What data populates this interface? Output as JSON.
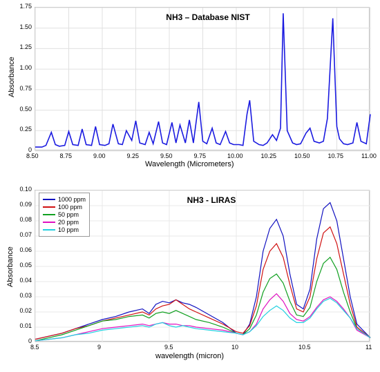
{
  "top_chart": {
    "type": "line",
    "title": "NH3 – Database NIST",
    "title_fontsize": 12,
    "xlabel": "Wavelength (Micrometers)",
    "ylabel": "Absorbance",
    "label_fontsize": 11,
    "tick_fontsize": 9,
    "xlim": [
      8.5,
      11.0
    ],
    "ylim": [
      0,
      1.75
    ],
    "xticks": [
      8.5,
      8.75,
      9.0,
      9.25,
      9.5,
      9.75,
      10.0,
      10.25,
      10.5,
      10.75,
      11.0
    ],
    "yticks": [
      0,
      0.25,
      0.5,
      0.75,
      1.0,
      1.25,
      1.5,
      1.75
    ],
    "line_color": "#1a1ae0",
    "line_width": 1.6,
    "background_color": "#ffffff",
    "grid_color": "#e0e0e0",
    "x": [
      8.5,
      8.55,
      8.58,
      8.62,
      8.65,
      8.68,
      8.72,
      8.75,
      8.78,
      8.82,
      8.85,
      8.88,
      8.92,
      8.95,
      8.98,
      9.02,
      9.05,
      9.08,
      9.12,
      9.15,
      9.18,
      9.22,
      9.25,
      9.28,
      9.32,
      9.35,
      9.38,
      9.42,
      9.45,
      9.48,
      9.52,
      9.55,
      9.58,
      9.62,
      9.65,
      9.68,
      9.72,
      9.75,
      9.78,
      9.82,
      9.85,
      9.88,
      9.92,
      9.95,
      9.98,
      10.02,
      10.05,
      10.08,
      10.1,
      10.13,
      10.17,
      10.2,
      10.23,
      10.27,
      10.3,
      10.33,
      10.35,
      10.38,
      10.42,
      10.45,
      10.48,
      10.52,
      10.55,
      10.58,
      10.62,
      10.65,
      10.68,
      10.72,
      10.73,
      10.75,
      10.77,
      10.8,
      10.83,
      10.87,
      10.9,
      10.93,
      10.97,
      11.0
    ],
    "y": [
      0.05,
      0.05,
      0.07,
      0.23,
      0.08,
      0.06,
      0.07,
      0.24,
      0.08,
      0.07,
      0.27,
      0.08,
      0.07,
      0.3,
      0.08,
      0.07,
      0.09,
      0.33,
      0.09,
      0.08,
      0.25,
      0.13,
      0.37,
      0.1,
      0.08,
      0.23,
      0.09,
      0.36,
      0.1,
      0.08,
      0.35,
      0.1,
      0.32,
      0.1,
      0.38,
      0.1,
      0.6,
      0.12,
      0.09,
      0.28,
      0.1,
      0.08,
      0.24,
      0.1,
      0.08,
      0.08,
      0.07,
      0.45,
      0.62,
      0.12,
      0.08,
      0.07,
      0.1,
      0.2,
      0.13,
      0.28,
      1.68,
      0.25,
      0.1,
      0.08,
      0.09,
      0.22,
      0.28,
      0.12,
      0.1,
      0.12,
      0.4,
      1.62,
      1.18,
      0.3,
      0.15,
      0.09,
      0.08,
      0.1,
      0.35,
      0.12,
      0.09,
      0.45
    ]
  },
  "bottom_chart": {
    "type": "line",
    "title": "NH3 - LIRAS",
    "title_fontsize": 12,
    "xlabel": "wavelength (micron)",
    "ylabel": "Absorbance",
    "label_fontsize": 11,
    "tick_fontsize": 9,
    "xlim": [
      8.5,
      11.0
    ],
    "ylim": [
      0,
      0.1
    ],
    "xticks": [
      8.5,
      9,
      9.5,
      10,
      10.5,
      11
    ],
    "yticks": [
      0,
      0.01,
      0.02,
      0.03,
      0.04,
      0.05,
      0.06,
      0.07,
      0.08,
      0.09,
      0.1
    ],
    "background_color": "#ffffff",
    "grid_color": "#e8e8e8",
    "line_width": 1.2,
    "legend_position": "top-left",
    "series": [
      {
        "label": "1000 ppm",
        "color": "#1010c0",
        "x": [
          8.5,
          8.6,
          8.7,
          8.8,
          8.9,
          9.0,
          9.1,
          9.2,
          9.3,
          9.35,
          9.4,
          9.45,
          9.5,
          9.55,
          9.6,
          9.65,
          9.7,
          9.8,
          9.9,
          10.0,
          10.05,
          10.1,
          10.15,
          10.2,
          10.25,
          10.3,
          10.35,
          10.4,
          10.45,
          10.5,
          10.55,
          10.6,
          10.65,
          10.7,
          10.75,
          10.8,
          10.85,
          10.9,
          11.0
        ],
        "y": [
          0.002,
          0.004,
          0.006,
          0.009,
          0.012,
          0.015,
          0.017,
          0.02,
          0.022,
          0.019,
          0.025,
          0.027,
          0.026,
          0.028,
          0.026,
          0.025,
          0.023,
          0.018,
          0.013,
          0.006,
          0.005,
          0.012,
          0.03,
          0.06,
          0.075,
          0.081,
          0.07,
          0.045,
          0.025,
          0.022,
          0.035,
          0.068,
          0.088,
          0.092,
          0.08,
          0.055,
          0.03,
          0.012,
          0.003
        ]
      },
      {
        "label": "100 ppm",
        "color": "#d01010",
        "x": [
          8.5,
          8.6,
          8.7,
          8.8,
          8.9,
          9.0,
          9.1,
          9.2,
          9.3,
          9.35,
          9.4,
          9.45,
          9.5,
          9.55,
          9.6,
          9.65,
          9.7,
          9.8,
          9.9,
          10.0,
          10.05,
          10.1,
          10.15,
          10.2,
          10.25,
          10.3,
          10.35,
          10.4,
          10.45,
          10.5,
          10.55,
          10.6,
          10.65,
          10.7,
          10.75,
          10.8,
          10.85,
          10.9,
          11.0
        ],
        "y": [
          0.002,
          0.004,
          0.006,
          0.009,
          0.011,
          0.014,
          0.016,
          0.018,
          0.02,
          0.018,
          0.022,
          0.024,
          0.025,
          0.028,
          0.025,
          0.022,
          0.02,
          0.016,
          0.012,
          0.007,
          0.006,
          0.011,
          0.024,
          0.048,
          0.06,
          0.065,
          0.056,
          0.038,
          0.022,
          0.02,
          0.03,
          0.055,
          0.072,
          0.076,
          0.065,
          0.045,
          0.025,
          0.01,
          0.003
        ]
      },
      {
        "label": "50 ppm",
        "color": "#10a020",
        "x": [
          8.5,
          8.6,
          8.7,
          8.8,
          8.9,
          9.0,
          9.1,
          9.2,
          9.3,
          9.35,
          9.4,
          9.45,
          9.5,
          9.55,
          9.6,
          9.65,
          9.7,
          9.8,
          9.9,
          10.0,
          10.05,
          10.1,
          10.15,
          10.2,
          10.25,
          10.3,
          10.35,
          10.4,
          10.45,
          10.5,
          10.55,
          10.6,
          10.65,
          10.7,
          10.75,
          10.8,
          10.85,
          10.9,
          11.0
        ],
        "y": [
          0.001,
          0.003,
          0.005,
          0.008,
          0.011,
          0.014,
          0.015,
          0.017,
          0.018,
          0.016,
          0.019,
          0.02,
          0.019,
          0.021,
          0.019,
          0.017,
          0.015,
          0.013,
          0.01,
          0.006,
          0.005,
          0.009,
          0.018,
          0.033,
          0.042,
          0.045,
          0.039,
          0.027,
          0.018,
          0.017,
          0.023,
          0.04,
          0.052,
          0.056,
          0.048,
          0.033,
          0.02,
          0.009,
          0.003
        ]
      },
      {
        "label": "20 ppm",
        "color": "#e010c0",
        "x": [
          8.5,
          8.6,
          8.7,
          8.8,
          8.9,
          9.0,
          9.1,
          9.2,
          9.3,
          9.35,
          9.4,
          9.45,
          9.5,
          9.55,
          9.6,
          9.65,
          9.7,
          9.8,
          9.9,
          10.0,
          10.05,
          10.1,
          10.15,
          10.2,
          10.25,
          10.3,
          10.35,
          10.4,
          10.45,
          10.5,
          10.55,
          10.6,
          10.65,
          10.7,
          10.75,
          10.8,
          10.85,
          10.9,
          11.0
        ],
        "y": [
          0.001,
          0.002,
          0.003,
          0.005,
          0.007,
          0.009,
          0.01,
          0.011,
          0.012,
          0.011,
          0.012,
          0.013,
          0.012,
          0.012,
          0.011,
          0.011,
          0.01,
          0.009,
          0.008,
          0.006,
          0.005,
          0.007,
          0.012,
          0.022,
          0.028,
          0.032,
          0.027,
          0.019,
          0.015,
          0.014,
          0.017,
          0.023,
          0.028,
          0.03,
          0.027,
          0.022,
          0.016,
          0.008,
          0.003
        ]
      },
      {
        "label": "10 ppm",
        "color": "#20d0e0",
        "x": [
          8.5,
          8.6,
          8.7,
          8.8,
          8.9,
          9.0,
          9.1,
          9.2,
          9.3,
          9.35,
          9.4,
          9.45,
          9.5,
          9.55,
          9.6,
          9.65,
          9.7,
          9.8,
          9.9,
          10.0,
          10.05,
          10.1,
          10.15,
          10.2,
          10.25,
          10.3,
          10.35,
          10.4,
          10.45,
          10.5,
          10.55,
          10.6,
          10.65,
          10.7,
          10.75,
          10.8,
          10.85,
          10.9,
          11.0
        ],
        "y": [
          0.001,
          0.002,
          0.003,
          0.005,
          0.006,
          0.008,
          0.009,
          0.01,
          0.011,
          0.01,
          0.012,
          0.013,
          0.011,
          0.01,
          0.011,
          0.01,
          0.009,
          0.008,
          0.007,
          0.006,
          0.005,
          0.007,
          0.011,
          0.017,
          0.021,
          0.024,
          0.021,
          0.016,
          0.013,
          0.013,
          0.016,
          0.022,
          0.027,
          0.029,
          0.026,
          0.021,
          0.016,
          0.009,
          0.003
        ]
      }
    ]
  }
}
